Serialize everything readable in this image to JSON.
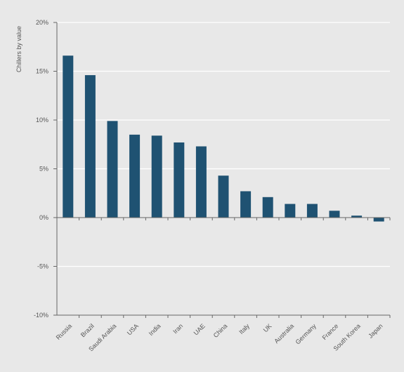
{
  "chart_data": {
    "type": "bar",
    "title": "",
    "xlabel": "",
    "ylabel": "Chillers by value",
    "ylim": [
      -10,
      20
    ],
    "yticks": [
      -10,
      -5,
      0,
      5,
      10,
      15,
      20
    ],
    "ytick_labels": [
      "-10%",
      "-5%",
      "0%",
      "5%",
      "10%",
      "15%",
      "20%"
    ],
    "grid": true,
    "categories": [
      "Russia",
      "Brazil",
      "Saudi Arabia",
      "USA",
      "India",
      "Iran",
      "UAE",
      "China",
      "Italy",
      "UK",
      "Australia",
      "Germany",
      "France",
      "South Korea",
      "Japan"
    ],
    "values": [
      16.6,
      14.6,
      9.9,
      8.5,
      8.4,
      7.7,
      7.3,
      4.3,
      2.7,
      2.1,
      1.4,
      1.4,
      0.7,
      0.2,
      -0.4
    ],
    "colors": {
      "bar": "#1f5272",
      "background": "#e8e8e8",
      "grid": "#ffffff",
      "axis": "#666666"
    }
  }
}
